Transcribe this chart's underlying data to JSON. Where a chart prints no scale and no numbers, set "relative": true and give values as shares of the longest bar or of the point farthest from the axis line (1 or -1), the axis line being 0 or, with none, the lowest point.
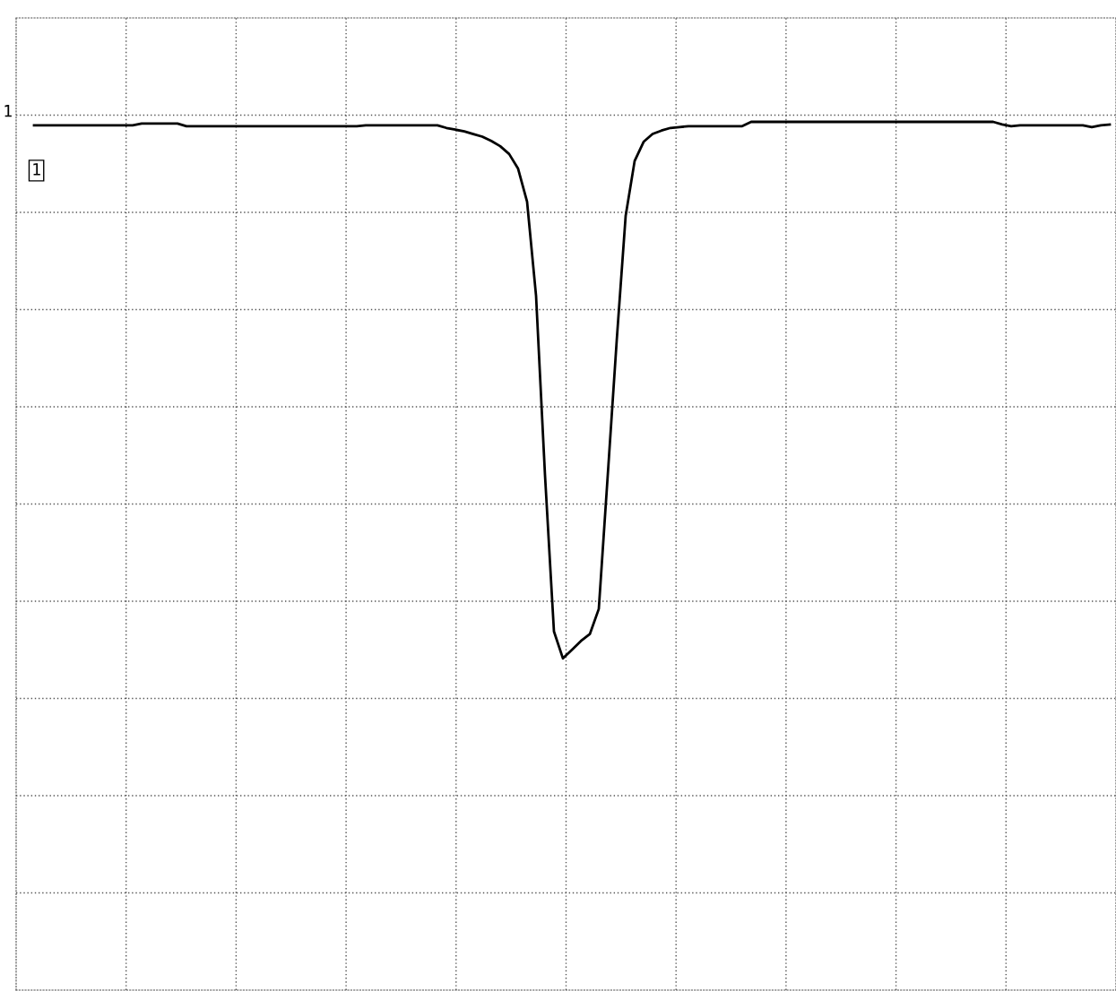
{
  "chart_data": {
    "type": "line",
    "relative": true,
    "grid": true,
    "legend": false,
    "marker": "none",
    "line_style": "solid",
    "annotations": [
      "1",
      "1"
    ],
    "categories": [
      null,
      null,
      null,
      null,
      null,
      null,
      null,
      null,
      null,
      null,
      null,
      null,
      null,
      null,
      null,
      null,
      null,
      null,
      null,
      null,
      null,
      null,
      null,
      null,
      null,
      null,
      null,
      null,
      null,
      null,
      null,
      null,
      null,
      null,
      null,
      null,
      null,
      null,
      null,
      null,
      null,
      null,
      null,
      null,
      null,
      null,
      null,
      null,
      null,
      null,
      null,
      null,
      null,
      null,
      null,
      null,
      null,
      null,
      null,
      null,
      null,
      null,
      null,
      null,
      null,
      null,
      null,
      null,
      null,
      null,
      null,
      null,
      null,
      null,
      null,
      null,
      null,
      null,
      null,
      null,
      null,
      null,
      null,
      null,
      null,
      null,
      null,
      null,
      null,
      null,
      null,
      null,
      null,
      null,
      null,
      null,
      null,
      null,
      null,
      null,
      null,
      null,
      null,
      null,
      null,
      null,
      null,
      null,
      null,
      null,
      null,
      null,
      null,
      null,
      null,
      null,
      null,
      null,
      null,
      null,
      null
    ],
    "series": [
      {
        "color": "#000000",
        "values": [
          0.996,
          0.996,
          0.996,
          0.996,
          0.996,
          0.996,
          0.996,
          0.996,
          0.996,
          0.996,
          0.996,
          0.996,
          0.998,
          0.998,
          0.998,
          0.998,
          0.998,
          0.995,
          0.995,
          0.995,
          0.995,
          0.995,
          0.995,
          0.995,
          0.995,
          0.995,
          0.995,
          0.995,
          0.995,
          0.995,
          0.995,
          0.995,
          0.995,
          0.995,
          0.995,
          0.995,
          0.995,
          0.996,
          0.996,
          0.996,
          0.996,
          0.996,
          0.996,
          0.996,
          0.996,
          0.996,
          0.993,
          0.991,
          0.989,
          0.986,
          0.983,
          0.978,
          0.972,
          0.963,
          0.946,
          0.908,
          0.8,
          0.593,
          0.413,
          0.382,
          0.392,
          0.402,
          0.41,
          0.439,
          0.593,
          0.748,
          0.892,
          0.955,
          0.977,
          0.986,
          0.99,
          0.993,
          0.994,
          0.995,
          0.995,
          0.995,
          0.995,
          0.995,
          0.995,
          0.995,
          1,
          1,
          1,
          1,
          1,
          1,
          1,
          1,
          1,
          1,
          1,
          1,
          1,
          1,
          1,
          1,
          1,
          1,
          1,
          1,
          1,
          1,
          1,
          1,
          1,
          1,
          1,
          1,
          0.997,
          0.995,
          0.996,
          0.996,
          0.996,
          0.996,
          0.996,
          0.996,
          0.996,
          0.996,
          0.994,
          0.996,
          0.997
        ]
      }
    ]
  }
}
